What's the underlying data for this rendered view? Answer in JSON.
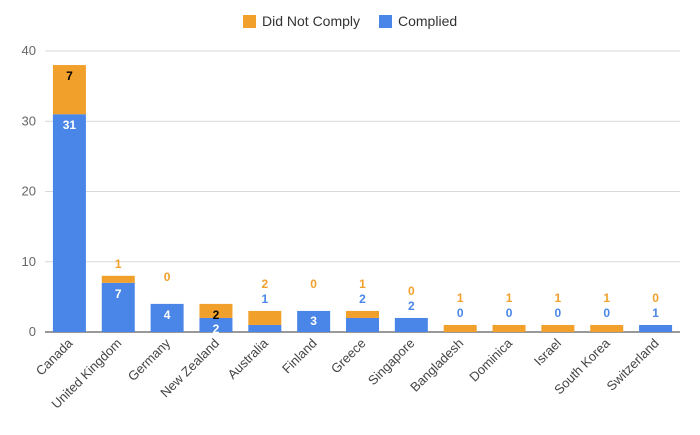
{
  "chart_data": {
    "type": "bar",
    "stacked": true,
    "categories": [
      "Canada",
      "United Kingdom",
      "Germany",
      "New Zealand",
      "Australia",
      "Finland",
      "Greece",
      "Singapore",
      "Bangladesh",
      "Dominica",
      "Israel",
      "South Korea",
      "Switzerland"
    ],
    "series": [
      {
        "name": "Complied",
        "color": "#4a86e8",
        "values": [
          31,
          7,
          4,
          2,
          1,
          3,
          2,
          2,
          0,
          0,
          0,
          0,
          1
        ]
      },
      {
        "name": "Did Not Comply",
        "color": "#f1a02c",
        "values": [
          7,
          1,
          0,
          2,
          2,
          0,
          1,
          0,
          1,
          1,
          1,
          1,
          0
        ]
      }
    ],
    "ylim": [
      0,
      40
    ],
    "yticks": [
      0,
      10,
      20,
      30,
      40
    ],
    "grid": true,
    "legend_position": "top",
    "legend_order": [
      "Did Not Comply",
      "Complied"
    ],
    "title": "",
    "xlabel": "",
    "ylabel": ""
  }
}
